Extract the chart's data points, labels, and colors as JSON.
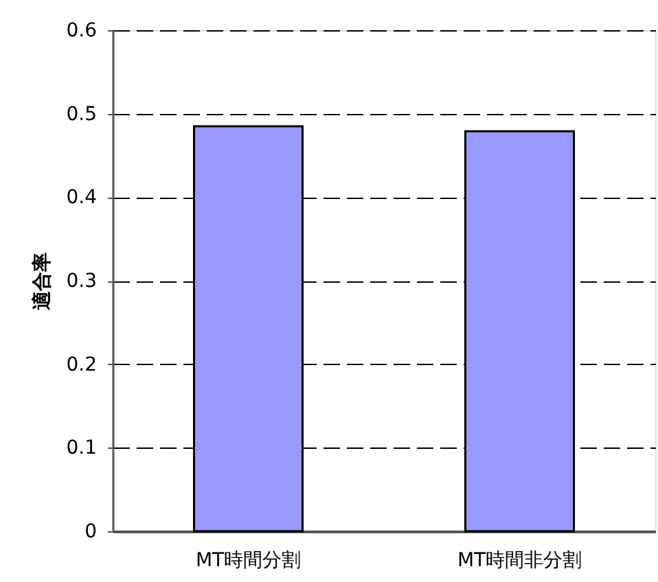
{
  "chart_data": {
    "type": "bar",
    "ylabel": "適合率",
    "categories": [
      "MT時間分割",
      "MT時間非分割"
    ],
    "values": [
      0.485,
      0.479
    ],
    "color": "#9999ff",
    "ylim": [
      0,
      0.6
    ],
    "yticks": [
      0,
      0.1,
      0.2,
      0.3,
      0.4,
      0.5,
      0.6
    ],
    "grid": "y"
  }
}
